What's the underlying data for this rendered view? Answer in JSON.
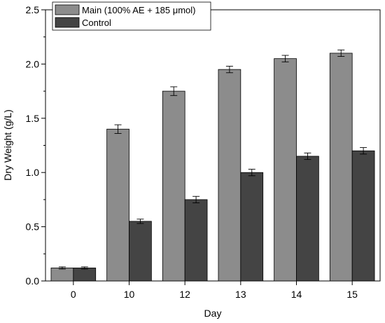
{
  "chart_data": {
    "type": "bar",
    "title": "",
    "xlabel": "Day",
    "ylabel": "Dry Weight (g/L)",
    "categories": [
      "0",
      "10",
      "12",
      "13",
      "14",
      "15"
    ],
    "ylim": [
      0,
      2.5
    ],
    "yticks": [
      "0.0",
      "0.5",
      "1.0",
      "1.5",
      "2.0",
      "2.5"
    ],
    "grid": false,
    "legend_position": "top-left",
    "series": [
      {
        "name": "Main (100% AE + 185 μmol)",
        "color": "#8c8c8c",
        "values": [
          0.12,
          1.4,
          1.75,
          1.95,
          2.05,
          2.1
        ],
        "errors": [
          0.01,
          0.04,
          0.04,
          0.03,
          0.03,
          0.03
        ]
      },
      {
        "name": "Control",
        "color": "#444444",
        "values": [
          0.12,
          0.55,
          0.75,
          1.0,
          1.15,
          1.2
        ],
        "errors": [
          0.01,
          0.02,
          0.03,
          0.03,
          0.03,
          0.03
        ]
      }
    ]
  }
}
